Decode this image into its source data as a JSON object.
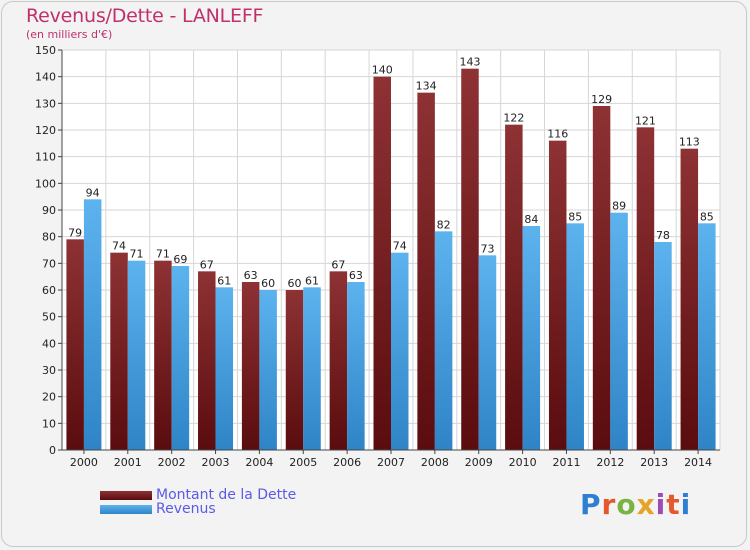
{
  "header": {
    "title": "Revenus/Dette - LANLEFF",
    "subtitle": "(en milliers d'€)"
  },
  "legend": [
    {
      "label": "Montant de la Dette",
      "color": "#7a1c1e"
    },
    {
      "label": "Revenus",
      "color": "#3e9fe0"
    }
  ],
  "logo": {
    "text": "Proxiti",
    "colors": [
      "#2f7fd0",
      "#e5572d",
      "#79b341",
      "#e5a428",
      "#9b4ab8",
      "#e5572d",
      "#2f7fd0"
    ]
  },
  "chart_data": {
    "type": "bar",
    "title": "Revenus/Dette - LANLEFF",
    "ylabel": "(en milliers d'€)",
    "xlabel": "",
    "ylim": [
      0,
      150
    ],
    "yticks": [
      0,
      10,
      20,
      30,
      40,
      50,
      60,
      70,
      80,
      90,
      100,
      110,
      120,
      130,
      140,
      150
    ],
    "grid": true,
    "legend_position": "bottom-left",
    "categories": [
      "2000",
      "2001",
      "2002",
      "2003",
      "2004",
      "2005",
      "2006",
      "2007",
      "2008",
      "2009",
      "2010",
      "2011",
      "2012",
      "2013",
      "2014"
    ],
    "series": [
      {
        "name": "Montant de la Dette",
        "values": [
          79,
          74,
          71,
          67,
          63,
          60,
          67,
          140,
          134,
          143,
          122,
          116,
          129,
          121,
          113
        ]
      },
      {
        "name": "Revenus",
        "values": [
          94,
          71,
          69,
          61,
          60,
          61,
          63,
          74,
          82,
          73,
          84,
          85,
          89,
          78,
          85
        ]
      }
    ]
  }
}
